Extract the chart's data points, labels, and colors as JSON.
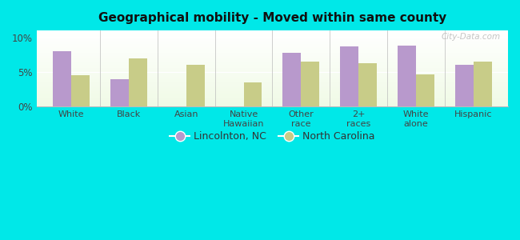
{
  "title": "Geographical mobility - Moved within same county",
  "categories": [
    "White",
    "Black",
    "Asian",
    "Native\nHawaiian",
    "Other\nrace",
    "2+\nraces",
    "White\nalone",
    "Hispanic"
  ],
  "lincolnton": [
    8.0,
    4.0,
    null,
    null,
    7.8,
    8.7,
    8.8,
    6.0
  ],
  "north_carolina": [
    4.5,
    7.0,
    6.1,
    3.5,
    6.5,
    6.3,
    4.6,
    6.5
  ],
  "bar_color_lincolnton": "#b899cc",
  "bar_color_nc": "#c8cc88",
  "ylim": [
    0,
    11
  ],
  "yticks": [
    0,
    5,
    10
  ],
  "ytick_labels": [
    "0%",
    "5%",
    "10%"
  ],
  "background_outer": "#00e8e8",
  "legend_label_1": "Lincolnton, NC",
  "legend_label_2": "North Carolina",
  "watermark": "City-Data.com"
}
